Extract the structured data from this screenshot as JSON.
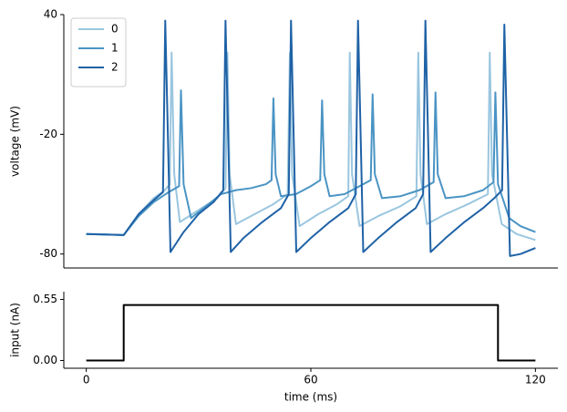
{
  "chart_data": [
    {
      "type": "line",
      "ylabel": "voltage (mV)",
      "xlim": [
        -6,
        126
      ],
      "ylim": [
        -87,
        40
      ],
      "yticks": [
        -80,
        -20,
        40
      ],
      "legend": "upper left",
      "series": [
        {
          "name": "0",
          "color": "#9ac6df",
          "x": [
            0,
            10,
            14,
            18,
            21,
            22.3,
            22.8,
            23.5,
            25,
            30,
            35,
            37.2,
            37.7,
            38.3,
            40,
            45,
            50,
            53.8,
            54.4,
            55,
            57,
            62,
            67,
            70,
            70.4,
            71,
            73,
            78,
            84,
            88.2,
            88.7,
            89.3,
            91,
            96,
            102,
            107.3,
            107.8,
            108.4,
            111,
            115,
            120
          ],
          "values": [
            -70,
            -70.5,
            -60,
            -52,
            -48,
            -45,
            21,
            -40,
            -64,
            -58,
            -52,
            -47,
            21,
            -40,
            -65,
            -60,
            -55,
            -50,
            21,
            -40,
            -66,
            -60,
            -55,
            -51,
            21,
            -40,
            -66,
            -61,
            -56,
            -51,
            21,
            -40,
            -65,
            -60,
            -55,
            -50,
            21,
            -40,
            -65,
            -70,
            -73
          ]
        },
        {
          "name": "1",
          "color": "#4a94c4",
          "x": [
            0,
            10,
            14,
            18,
            22,
            24.8,
            25.3,
            26,
            28,
            32,
            36,
            40,
            44,
            48,
            49.5,
            50,
            50.6,
            52,
            56,
            60,
            62.5,
            63,
            63.6,
            65,
            69,
            73,
            76,
            76.5,
            77.1,
            79,
            84,
            89,
            92.8,
            93.3,
            93.9,
            96,
            101,
            106,
            108.8,
            109.3,
            110,
            113,
            116,
            120
          ],
          "values": [
            -70,
            -70.5,
            -61,
            -54,
            -49,
            -46,
            2,
            -45,
            -62,
            -56,
            -50,
            -48,
            -47,
            -45,
            -43,
            -2,
            -40,
            -51,
            -50,
            -46,
            -43,
            -3,
            -40,
            -51,
            -50,
            -46,
            -43,
            0,
            -40,
            -52,
            -51,
            -48,
            -44,
            1,
            -40,
            -52,
            -51,
            -48,
            -44,
            1,
            -45,
            -62,
            -66,
            -69
          ]
        },
        {
          "name": "2",
          "color": "#1f62a6",
          "x": [
            0,
            10,
            14,
            18,
            20.5,
            21.1,
            21.8,
            22.5,
            26,
            30,
            34,
            36.6,
            37.2,
            37.9,
            38.6,
            42,
            47,
            52,
            54.1,
            54.7,
            55.4,
            56.1,
            60,
            65,
            70,
            72,
            72.6,
            73.3,
            74,
            78,
            83,
            88,
            90,
            90.6,
            91.3,
            92,
            96,
            101,
            106,
            109,
            111.1,
            111.7,
            112.4,
            113.2,
            116,
            120
          ],
          "values": [
            -70,
            -70.5,
            -60,
            -53,
            -49,
            37,
            -20,
            -79,
            -69,
            -60,
            -54,
            -48,
            37,
            -20,
            -79,
            -72,
            -64,
            -57,
            -50,
            37,
            -20,
            -79,
            -72,
            -64,
            -57,
            -50,
            37,
            -20,
            -79,
            -72,
            -64,
            -57,
            -50,
            37,
            -20,
            -79,
            -72,
            -64,
            -57,
            -52,
            -48,
            35,
            -20,
            -81,
            -80,
            -77
          ]
        }
      ]
    },
    {
      "type": "line",
      "xlabel": "time (ms)",
      "ylabel": "input (nA)",
      "xlim": [
        -6,
        126
      ],
      "ylim": [
        -0.07,
        0.62
      ],
      "xticks": [
        0,
        60,
        120
      ],
      "yticks": [
        {
          "value": 0,
          "label": "0.00"
        },
        0.55
      ],
      "series": [
        {
          "color": "#000000",
          "x": [
            0,
            10,
            10,
            110,
            110,
            120
          ],
          "values": [
            0,
            0,
            0.5,
            0.5,
            0,
            0
          ]
        }
      ]
    }
  ]
}
